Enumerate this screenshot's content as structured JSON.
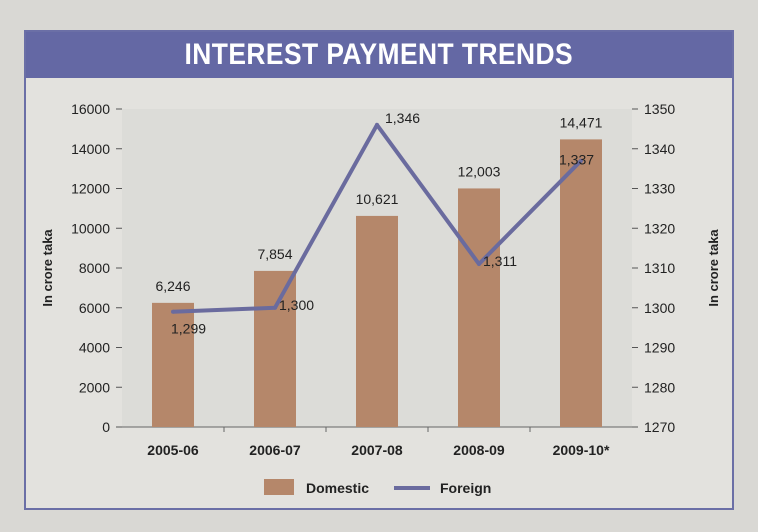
{
  "chart_data": {
    "type": "bar",
    "title": "INTEREST PAYMENT TRENDS",
    "categories": [
      "2005-06",
      "2006-07",
      "2007-08",
      "2008-09",
      "2009-10*"
    ],
    "series": [
      {
        "name": "Domestic",
        "type": "bar",
        "axis": "left",
        "values": [
          6246,
          7854,
          10621,
          12003,
          14471
        ],
        "labels": [
          "6,246",
          "7,854",
          "10,621",
          "12,003",
          "14,471"
        ],
        "color": "#b5876a"
      },
      {
        "name": "Foreign",
        "type": "line",
        "axis": "right",
        "values": [
          1299,
          1300,
          1346,
          1311,
          1337
        ],
        "labels": [
          "1,299",
          "1,300",
          "1,346",
          "1,311",
          "1,337"
        ],
        "color": "#6a6b9e"
      }
    ],
    "ylabel_left": "In crore taka",
    "ylabel_right": "In crore taka",
    "ylim_left": [
      0,
      16000
    ],
    "ylim_right": [
      1270,
      1350
    ],
    "yticks_left": [
      "0",
      "2000",
      "4000",
      "6000",
      "8000",
      "10000",
      "12000",
      "14000",
      "16000"
    ],
    "yticks_right": [
      "1270",
      "1280",
      "1290",
      "1300",
      "1310",
      "1320",
      "1330",
      "1340",
      "1350"
    ],
    "legend_position": "bottom"
  }
}
